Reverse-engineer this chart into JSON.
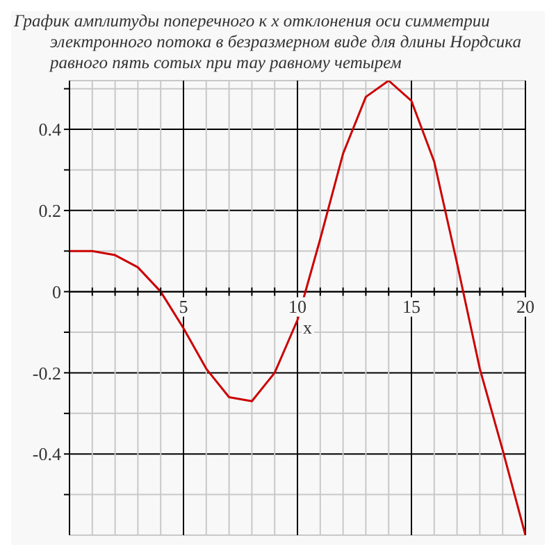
{
  "chart_data": {
    "type": "line",
    "title": "График амплитуды поперечного к x отклонения оси симметрии электронного потока в безразмерном виде для длины Нордсика равного пять сотых при тау равному четырем",
    "xlabel": "x",
    "x": [
      0,
      1,
      2,
      3,
      4,
      5,
      6,
      7,
      8,
      9,
      10,
      11,
      12,
      13,
      14,
      15,
      16,
      17,
      18,
      19,
      20
    ],
    "series": [
      {
        "color": "#cc0000",
        "values": [
          0.1,
          0.1,
          0.09,
          0.06,
          0.0,
          -0.09,
          -0.19,
          -0.26,
          -0.27,
          -0.2,
          -0.07,
          0.13,
          0.34,
          0.48,
          0.52,
          0.47,
          0.32,
          0.07,
          -0.19,
          -0.39,
          -0.6
        ]
      }
    ],
    "xlim": [
      0,
      20
    ],
    "xticks": [
      {
        "value": 1,
        "label": null
      },
      {
        "value": 2,
        "label": null
      },
      {
        "value": 3,
        "label": null
      },
      {
        "value": 4,
        "label": null
      },
      5,
      {
        "value": 6,
        "label": null
      },
      {
        "value": 7,
        "label": null
      },
      {
        "value": 8,
        "label": null
      },
      {
        "value": 9,
        "label": null
      },
      10,
      {
        "value": 11,
        "label": null
      },
      {
        "value": 12,
        "label": null
      },
      {
        "value": 13,
        "label": null
      },
      {
        "value": 14,
        "label": null
      },
      15,
      {
        "value": 16,
        "label": null
      },
      {
        "value": 17,
        "label": null
      },
      {
        "value": 18,
        "label": null
      },
      {
        "value": 19,
        "label": null
      },
      20
    ],
    "ylim": [
      -0.6,
      0.52
    ],
    "yticks": [
      {
        "value": -0.5,
        "label": null
      },
      -0.4,
      {
        "value": -0.3,
        "label": null
      },
      -0.2,
      {
        "value": -0.1,
        "label": null
      },
      0,
      {
        "value": 0.1,
        "label": null
      },
      0.2,
      {
        "value": 0.3,
        "label": null
      },
      0.4,
      {
        "value": 0.5,
        "label": null
      }
    ],
    "grid": true
  }
}
